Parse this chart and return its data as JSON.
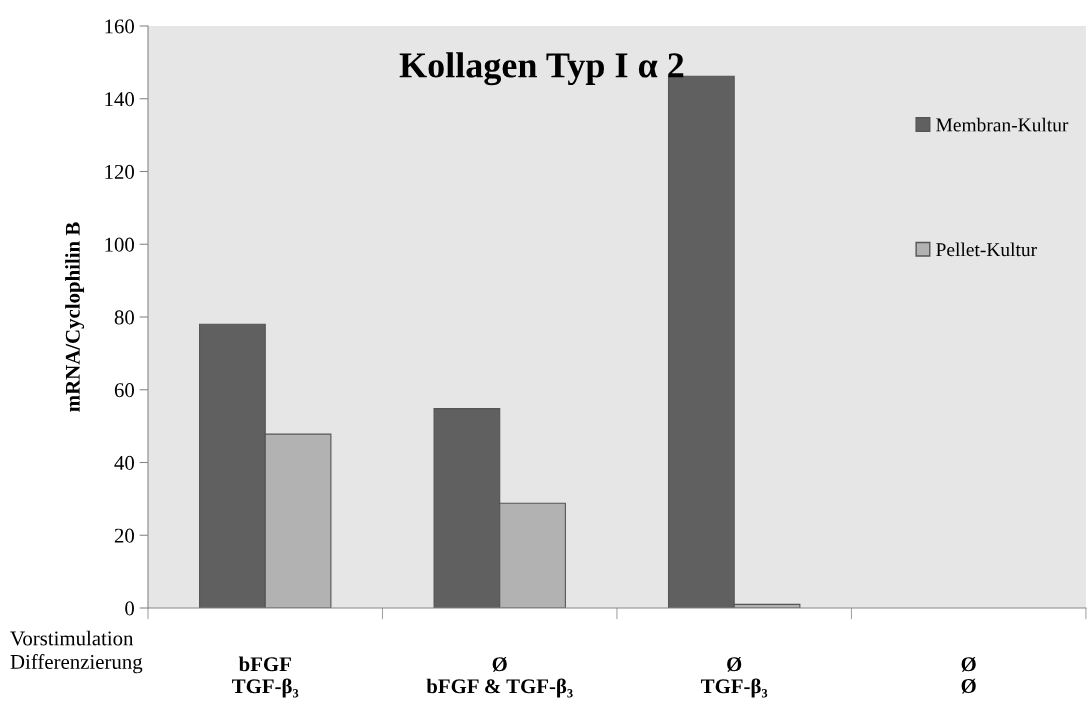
{
  "chart_data": {
    "type": "bar",
    "title": "Kollagen Typ I α 2",
    "ylabel": "mRNA/Cyclophilin B",
    "categories": [
      "bFGF\nTGF-β₃",
      "Ø\nbFGF & TGF-β₃",
      "Ø\nTGF-β₃",
      "Ø\nØ"
    ],
    "series": [
      {
        "name": "Membran-Kultur",
        "color": "#606060",
        "values": [
          78,
          54.8,
          146.2,
          null
        ]
      },
      {
        "name": "Pellet-Kultur",
        "color": "#b2b2b2",
        "values": [
          47.8,
          28.8,
          1,
          null
        ]
      }
    ],
    "ylim": [
      0,
      160
    ],
    "yticks": [
      0,
      20,
      40,
      60,
      80,
      100,
      120,
      140,
      160
    ],
    "annotations": [
      "Vorstimulation\nDifferenzierung"
    ],
    "grid": false,
    "legend": "right"
  }
}
